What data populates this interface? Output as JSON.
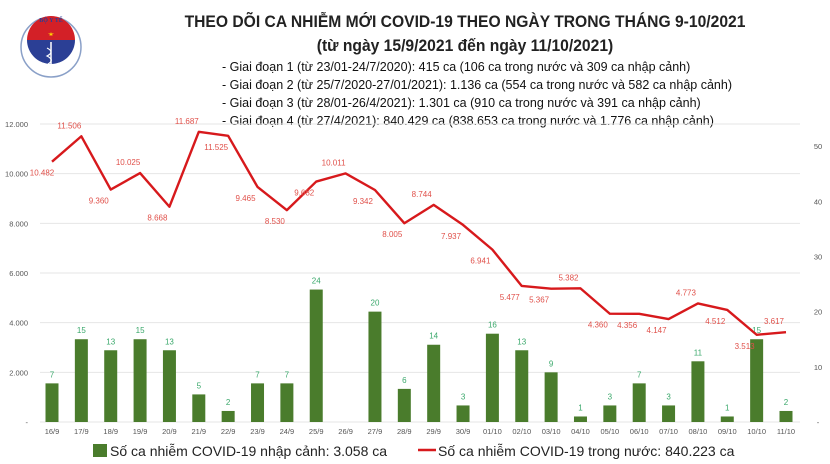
{
  "header": {
    "title": "THEO DÕI CA NHIỄM MỚI COVID-19 THEO NGÀY TRONG THÁNG 9-10/2021",
    "subtitle": "(từ ngày 15/9/2021 đến ngày 11/10/2021)",
    "stages": [
      "- Giai đoạn 1 (từ 23/01-24/7/2020): 415 ca (106 ca trong nước và 309 ca nhập cảnh)",
      "- Giai đoạn 2 (từ 25/7/2020-27/01/2021): 1.136 ca (554 ca trong nước và 582 ca nhập cảnh)",
      "- Giai đoạn 3 (từ 28/01-26/4/2021): 1.301 ca (910 ca trong nước và 391 ca nhập cảnh)",
      "- Giai đoạn 4 (từ 27/4/2021): 840.429 ca (838.653 ca trong nước và 1.776 ca nhập cảnh)"
    ],
    "logo": {
      "top_text": "BỘ Y TẾ",
      "bottom_text": "MINISTRY OF HEALTH"
    }
  },
  "chart_data": {
    "type": "bar+line",
    "categories": [
      "16/9",
      "17/9",
      "18/9",
      "19/9",
      "20/9",
      "21/9",
      "22/9",
      "23/9",
      "24/9",
      "25/9",
      "26/9",
      "27/9",
      "28/9",
      "29/9",
      "30/9",
      "01/10",
      "02/10",
      "03/10",
      "04/10",
      "05/10",
      "06/10",
      "07/10",
      "08/10",
      "09/10",
      "10/10",
      "11/10"
    ],
    "series": [
      {
        "name": "Số ca nhiễm COVID-19 nhập cảnh: 3.058 ca",
        "type": "bar",
        "axis": "right",
        "color": "#4a7c2c",
        "label_color": "#3aa86b",
        "values": [
          7,
          15,
          13,
          15,
          13,
          5,
          2,
          7,
          7,
          24,
          0,
          20,
          6,
          14,
          3,
          16,
          13,
          9,
          1,
          3,
          7,
          3,
          11,
          1,
          15,
          2
        ],
        "labels": [
          "7",
          "15",
          "13",
          "15",
          "13",
          "5",
          "2",
          "7",
          "7",
          "24",
          "",
          "20",
          "6",
          "14",
          "3",
          "16",
          "13",
          "9",
          "1",
          "3",
          "7",
          "3",
          "11",
          "1",
          "15",
          "2"
        ]
      },
      {
        "name": "Số ca nhiễm COVID-19 trong nước: 840.223 ca",
        "type": "line",
        "axis": "left",
        "color": "#d7191c",
        "label_color": "#e0504a",
        "values": [
          10482,
          11506,
          9360,
          10025,
          8668,
          11687,
          11525,
          9465,
          8530,
          9682,
          10011,
          9342,
          8005,
          8744,
          7937,
          6941,
          5477,
          5367,
          5382,
          4360,
          4356,
          4147,
          4773,
          4512,
          3513,
          3617
        ],
        "labels": [
          "10.482",
          "11.506",
          "9.360",
          "10.025",
          "8.668",
          "11.687",
          "11.525",
          "9.465",
          "8.530",
          "9.682",
          "10.011",
          "9.342",
          "8.005",
          "8.744",
          "7.937",
          "6.941",
          "5.477",
          "5.367",
          "5.382",
          "4.360",
          "4.356",
          "4.147",
          "4.773",
          "4.512",
          "3.513",
          "3.617"
        ]
      }
    ],
    "y_left": {
      "ylim": [
        0,
        12000
      ],
      "ticks": [
        "-",
        "2.000",
        "4.000",
        "6.000",
        "8.000",
        "10.000",
        "12.000"
      ]
    },
    "y_right": {
      "ylim": [
        0,
        54
      ],
      "ticks": [
        "-",
        "10",
        "20",
        "30",
        "40",
        "50"
      ]
    },
    "grid": true,
    "legend": "bottom"
  }
}
